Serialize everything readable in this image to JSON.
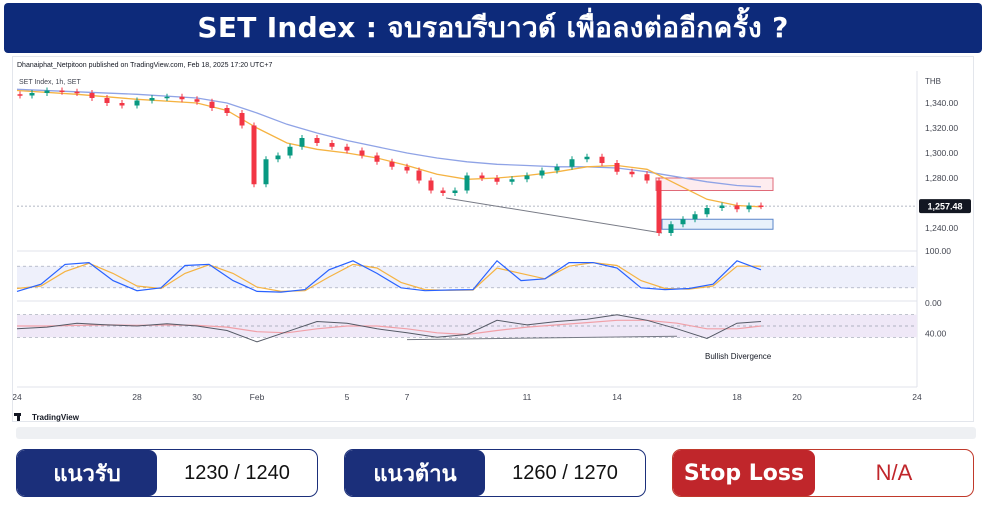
{
  "banner": {
    "title": "SET Index : จบรอบรีบาวด์ เพื่อลงต่ออีกครั้ง ?"
  },
  "chart_header": {
    "publisher": "Dhanaiphat_Netpitoon published on TradingView.com, Feb 18, 2025 17:20 UTC+7",
    "symbol": "SET Index, 1h, SET"
  },
  "branding": {
    "name": "TradingView"
  },
  "annotation": {
    "divergence": "Bullish Divergence"
  },
  "levels": {
    "support": {
      "label": "แนวรับ",
      "value": "1230 / 1240"
    },
    "resistance": {
      "label": "แนวต้าน",
      "value": "1260 / 1270"
    },
    "stop": {
      "label": "Stop Loss",
      "value": "N/A"
    }
  },
  "colors": {
    "banner": "#0d2a7a",
    "level_box": "#1b2f7a",
    "stop_loss": "#c0262b",
    "candle_up": "#089981",
    "candle_down": "#f23645",
    "ma_fast": "#f5b342",
    "ma_slow": "#8fa3e6",
    "price_tag": "#131722"
  },
  "chart_data": {
    "type": "line",
    "title": "SET Index, 1h, SET",
    "currency": "THB",
    "last_price": "1,257.48",
    "price_axis": {
      "range": [
        1228,
        1356
      ],
      "ticks": [
        "1,340.00",
        "1,320.00",
        "1,300.00",
        "1,280.00",
        "1,240.00"
      ]
    },
    "time_axis": {
      "range": [
        24,
        50
      ],
      "ticks": [
        {
          "t": 24,
          "label": "24"
        },
        {
          "t": 28,
          "label": "28"
        },
        {
          "t": 30,
          "label": "30"
        },
        {
          "t": 32,
          "label": "Feb"
        },
        {
          "t": 35,
          "label": "5"
        },
        {
          "t": 37,
          "label": "7"
        },
        {
          "t": 41,
          "label": "11"
        },
        {
          "t": 44,
          "label": "14"
        },
        {
          "t": 48,
          "label": "18"
        },
        {
          "t": 50,
          "label": "20"
        },
        {
          "t": 54,
          "label": "24"
        }
      ]
    },
    "series": [
      {
        "name": "SET Index",
        "kind": "candles",
        "x": [
          24.1,
          24.5,
          25.0,
          25.5,
          26.0,
          26.5,
          27.0,
          27.5,
          28.0,
          28.5,
          29.0,
          29.5,
          30.0,
          30.5,
          31.0,
          31.5,
          31.9,
          32.3,
          32.7,
          33.1,
          33.5,
          34.0,
          34.5,
          35.0,
          35.5,
          36.0,
          36.5,
          37.0,
          37.4,
          37.8,
          38.2,
          38.6,
          39.0,
          39.5,
          40.0,
          40.5,
          41.0,
          41.5,
          42.0,
          42.5,
          43.0,
          43.5,
          44.0,
          44.5,
          45.0,
          45.4,
          45.8,
          46.2,
          46.6,
          47.0,
          47.5,
          48.0,
          48.4,
          48.8
        ],
        "close": [
          1346,
          1348,
          1350,
          1349,
          1348,
          1344,
          1340,
          1338,
          1342,
          1344,
          1345,
          1343,
          1341,
          1336,
          1332,
          1322,
          1275,
          1295,
          1298,
          1305,
          1312,
          1308,
          1305,
          1302,
          1298,
          1293,
          1289,
          1286,
          1278,
          1270,
          1268,
          1270,
          1282,
          1280,
          1277,
          1279,
          1282,
          1286,
          1289,
          1295,
          1297,
          1292,
          1285,
          1283,
          1278,
          1236,
          1243,
          1247,
          1251,
          1256,
          1258,
          1255,
          1258,
          1257.48
        ]
      },
      {
        "name": "MA fast",
        "kind": "line",
        "x": [
          24,
          26,
          28,
          30,
          31,
          32,
          33,
          34,
          35,
          36,
          37,
          38,
          39,
          40,
          41,
          42,
          43,
          44,
          45,
          46,
          47,
          48,
          48.8
        ],
        "values": [
          1350,
          1347,
          1343,
          1340,
          1334,
          1320,
          1308,
          1303,
          1300,
          1296,
          1290,
          1283,
          1279,
          1280,
          1282,
          1285,
          1289,
          1290,
          1287,
          1275,
          1263,
          1258,
          1257
        ]
      },
      {
        "name": "MA slow",
        "kind": "line",
        "x": [
          24,
          26,
          28,
          30,
          31,
          32,
          33,
          34,
          35,
          36,
          37,
          38,
          39,
          40,
          41,
          42,
          43,
          44,
          45,
          46,
          47,
          48,
          48.8
        ],
        "values": [
          1351,
          1349,
          1347,
          1344,
          1340,
          1332,
          1323,
          1316,
          1310,
          1305,
          1300,
          1296,
          1293,
          1291,
          1290,
          1289,
          1289,
          1288,
          1285,
          1281,
          1277,
          1274,
          1273
        ]
      },
      {
        "name": "Stochastic %K",
        "kind": "line",
        "range": [
          0,
          100
        ],
        "x": [
          24,
          24.8,
          25.6,
          26.4,
          27.2,
          28,
          28.8,
          29.6,
          30.4,
          31.2,
          32,
          32.8,
          33.6,
          34.4,
          35.2,
          36,
          36.8,
          37.6,
          38.4,
          39.2,
          40,
          40.8,
          41.6,
          42.4,
          43.2,
          44,
          44.8,
          45.6,
          46.4,
          47.2,
          48,
          48.8
        ],
        "values": [
          10,
          30,
          85,
          90,
          40,
          12,
          20,
          82,
          85,
          40,
          10,
          8,
          15,
          70,
          95,
          60,
          20,
          12,
          14,
          15,
          95,
          40,
          45,
          90,
          90,
          75,
          20,
          15,
          18,
          30,
          95,
          70
        ]
      },
      {
        "name": "Stochastic %D",
        "kind": "line",
        "range": [
          0,
          100
        ],
        "x": [
          24,
          24.8,
          25.6,
          26.4,
          27.2,
          28,
          28.8,
          29.6,
          30.4,
          31.2,
          32,
          32.8,
          33.6,
          34.4,
          35.2,
          36,
          36.8,
          37.6,
          38.4,
          39.2,
          40,
          40.8,
          41.6,
          42.4,
          43.2,
          44,
          44.8,
          45.6,
          46.4,
          47.2,
          48,
          48.8
        ],
        "values": [
          18,
          25,
          65,
          88,
          60,
          25,
          18,
          60,
          84,
          60,
          22,
          10,
          12,
          50,
          85,
          75,
          35,
          15,
          13,
          14,
          75,
          60,
          45,
          80,
          90,
          82,
          40,
          18,
          16,
          25,
          80,
          80
        ]
      },
      {
        "name": "RSI",
        "kind": "line",
        "range": [
          20,
          80
        ],
        "x": [
          24,
          25,
          26,
          27,
          28,
          29,
          30,
          31,
          32,
          33,
          34,
          35,
          36,
          37,
          38,
          39,
          40,
          41,
          42,
          43,
          44,
          45,
          46,
          47,
          48,
          48.8
        ],
        "values": [
          45,
          48,
          55,
          52,
          50,
          54,
          50,
          42,
          22,
          40,
          58,
          55,
          45,
          38,
          30,
          35,
          60,
          52,
          58,
          62,
          70,
          60,
          45,
          28,
          55,
          58
        ]
      },
      {
        "name": "RSI MA",
        "kind": "line",
        "range": [
          20,
          80
        ],
        "x": [
          24,
          25,
          26,
          27,
          28,
          29,
          30,
          31,
          32,
          33,
          34,
          35,
          36,
          37,
          38,
          39,
          40,
          41,
          42,
          43,
          44,
          45,
          46,
          47,
          48,
          48.8
        ],
        "values": [
          50,
          50,
          51,
          52,
          51,
          52,
          51,
          48,
          40,
          38,
          45,
          50,
          50,
          45,
          38,
          35,
          42,
          48,
          52,
          56,
          60,
          60,
          55,
          45,
          45,
          50
        ]
      }
    ],
    "lower_axis": {
      "ticks": [
        "100.00",
        "0.00",
        "40.00"
      ]
    },
    "zones": [
      {
        "name": "resistance",
        "t0": 45.3,
        "t1": 49.2,
        "p0": 1270,
        "p1": 1280
      },
      {
        "name": "support",
        "t0": 45.5,
        "t1": 49.2,
        "p0": 1239,
        "p1": 1247
      }
    ],
    "trendlines": [
      {
        "pane": "price",
        "t0": 38.3,
        "p0": 1264,
        "t1": 45.5,
        "p1": 1236
      },
      {
        "pane": "rsi",
        "t0": 37.0,
        "v0": 26,
        "t1": 46.0,
        "v1": 32
      }
    ]
  }
}
